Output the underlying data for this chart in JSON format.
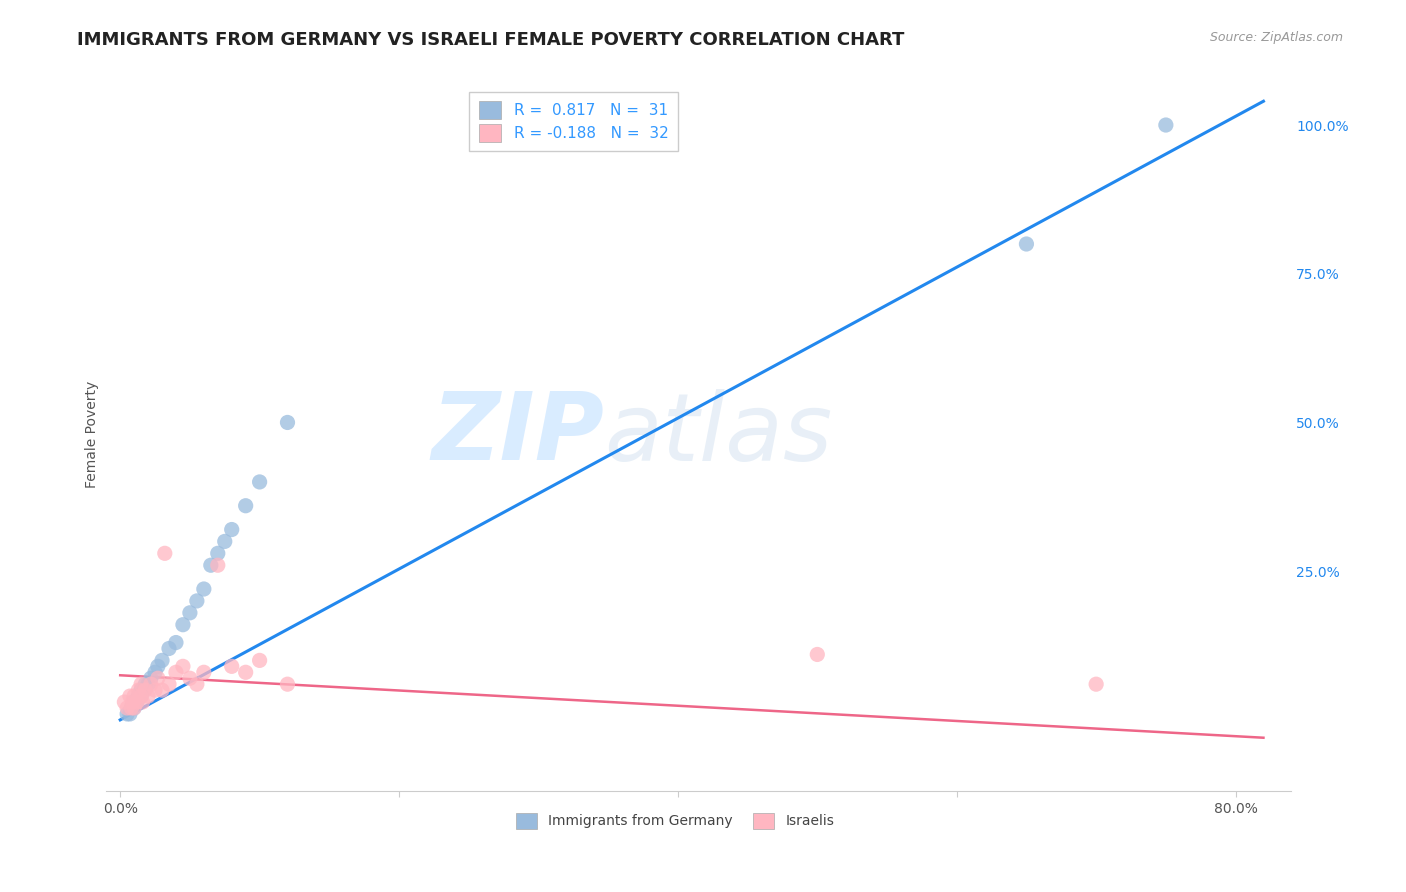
{
  "title": "IMMIGRANTS FROM GERMANY VS ISRAELI FEMALE POVERTY CORRELATION CHART",
  "source_text": "Source: ZipAtlas.com",
  "ylabel": "Female Poverty",
  "y_tick_labels_right": [
    "25.0%",
    "50.0%",
    "75.0%",
    "100.0%"
  ],
  "y_ticks_right": [
    0.25,
    0.5,
    0.75,
    1.0
  ],
  "x_tick_labels": [
    "0.0%",
    "",
    "",
    "",
    "80.0%"
  ],
  "x_ticks": [
    0.0,
    0.2,
    0.4,
    0.6,
    0.8
  ],
  "xlim": [
    -0.01,
    0.84
  ],
  "ylim": [
    -0.12,
    1.08
  ],
  "watermark_zip": "ZIP",
  "watermark_atlas": "atlas",
  "legend_entries": [
    {
      "label": "R =  0.817   N =  31",
      "color": "#AACCEE"
    },
    {
      "label": "R = -0.188   N =  32",
      "color": "#FFB6C1"
    }
  ],
  "legend_text_color": "#3399FF",
  "blue_color": "#99BBDD",
  "pink_color": "#FFB6C1",
  "blue_line_color": "#2288EE",
  "pink_line_color": "#EE6688",
  "blue_scatter_x": [
    0.005,
    0.007,
    0.008,
    0.01,
    0.01,
    0.012,
    0.013,
    0.015,
    0.015,
    0.017,
    0.018,
    0.02,
    0.022,
    0.025,
    0.027,
    0.03,
    0.035,
    0.04,
    0.045,
    0.05,
    0.055,
    0.06,
    0.065,
    0.07,
    0.075,
    0.08,
    0.09,
    0.1,
    0.12,
    0.65,
    0.75
  ],
  "blue_scatter_y": [
    0.01,
    0.01,
    0.02,
    0.02,
    0.03,
    0.03,
    0.04,
    0.04,
    0.05,
    0.05,
    0.06,
    0.06,
    0.07,
    0.08,
    0.09,
    0.1,
    0.12,
    0.13,
    0.16,
    0.18,
    0.2,
    0.22,
    0.26,
    0.28,
    0.3,
    0.32,
    0.36,
    0.4,
    0.5,
    0.8,
    1.0
  ],
  "pink_scatter_x": [
    0.003,
    0.005,
    0.007,
    0.008,
    0.009,
    0.01,
    0.01,
    0.012,
    0.013,
    0.015,
    0.015,
    0.016,
    0.018,
    0.02,
    0.022,
    0.025,
    0.027,
    0.03,
    0.032,
    0.035,
    0.04,
    0.045,
    0.05,
    0.055,
    0.06,
    0.07,
    0.08,
    0.09,
    0.1,
    0.12,
    0.5,
    0.7
  ],
  "pink_scatter_y": [
    0.03,
    0.02,
    0.04,
    0.02,
    0.03,
    0.02,
    0.04,
    0.03,
    0.05,
    0.04,
    0.06,
    0.03,
    0.05,
    0.04,
    0.06,
    0.05,
    0.07,
    0.05,
    0.28,
    0.06,
    0.08,
    0.09,
    0.07,
    0.06,
    0.08,
    0.26,
    0.09,
    0.08,
    0.1,
    0.06,
    0.11,
    0.06
  ],
  "blue_trend_x": [
    0.0,
    0.82
  ],
  "blue_trend_y": [
    0.0,
    1.04
  ],
  "pink_trend_x": [
    0.0,
    0.82
  ],
  "pink_trend_y": [
    0.075,
    -0.03
  ],
  "background_color": "#FFFFFF",
  "grid_color": "#CCCCCC",
  "title_fontsize": 13,
  "tick_fontsize": 10,
  "watermark_color_zip": "#BBDDFF",
  "watermark_color_atlas": "#CCDDEE",
  "bottom_legend": [
    {
      "label": "Immigrants from Germany",
      "color": "#AACCEE"
    },
    {
      "label": "Israelis",
      "color": "#FFB6C1"
    }
  ]
}
